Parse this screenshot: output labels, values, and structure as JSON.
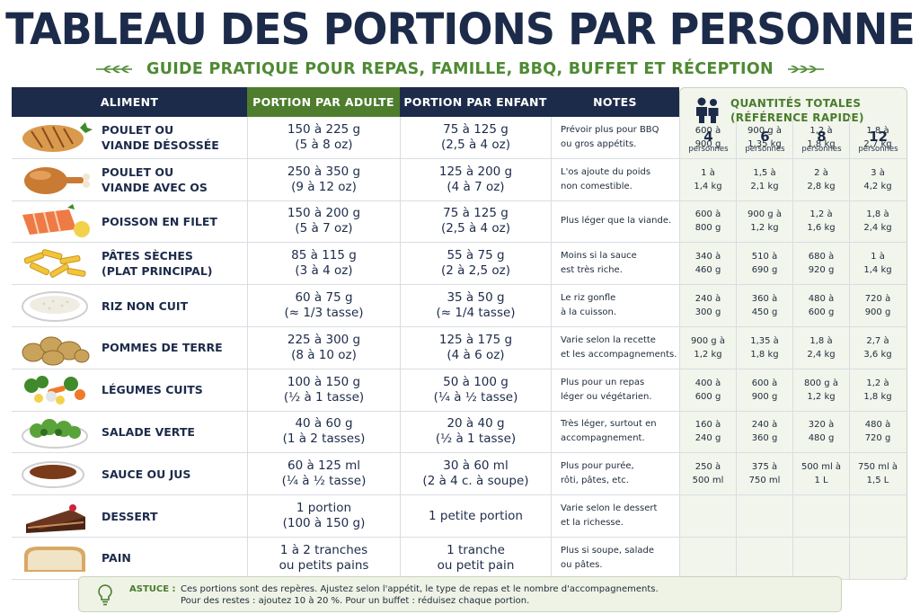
{
  "title": "TABLEAU DES PORTIONS PAR PERSONNE",
  "subtitle": "GUIDE PRATIQUE POUR REPAS, FAMILLE, BBQ, BUFFET ET RÉCEPTION",
  "headers": {
    "aliment": "ALIMENT",
    "adult": "PORTION PAR ADULTE",
    "child": "PORTION PAR ENFANT",
    "notes": "NOTES"
  },
  "quantities_header": {
    "title_line1": "QUANTITÉS TOTALES",
    "title_line2": "(RÉFÉRENCE RAPIDE)",
    "people": [
      {
        "n": "4",
        "label": "personnes"
      },
      {
        "n": "6",
        "label": "personnes"
      },
      {
        "n": "8",
        "label": "personnes"
      },
      {
        "n": "12",
        "label": "personnes"
      }
    ]
  },
  "colors": {
    "navy": "#1d2b4a",
    "green": "#4e7d2e",
    "subtitle_green": "#4e8a33",
    "panel_bg": "#f1f5ec"
  },
  "rows": [
    {
      "icon": "grilled-chicken-icon",
      "name": "POULET OU\nVIANDE DÉSOSSÉE",
      "adult": "150 à 225 g\n(5 à 8 oz)",
      "child": "75 à 125 g\n(2,5 à 4 oz)",
      "notes": "Prévoir plus pour BBQ\nou gros appétits.",
      "q": [
        "600 à\n900 g",
        "900 g à\n1,35 kg",
        "1,2 à\n1,8 kg",
        "1,8 à\n2,7 kg"
      ]
    },
    {
      "icon": "chicken-leg-icon",
      "name": "POULET OU\nVIANDE AVEC OS",
      "adult": "250 à 350 g\n(9 à 12 oz)",
      "child": "125 à 200 g\n(4 à 7 oz)",
      "notes": "L'os ajoute du poids\nnon comestible.",
      "q": [
        "1 à\n1,4 kg",
        "1,5 à\n2,1 kg",
        "2 à\n2,8 kg",
        "3 à\n4,2 kg"
      ]
    },
    {
      "icon": "salmon-fillet-icon",
      "name": "POISSON EN FILET",
      "adult": "150 à 200 g\n(5 à 7 oz)",
      "child": "75 à 125 g\n(2,5 à 4 oz)",
      "notes": "Plus léger que la viande.",
      "q": [
        "600 à\n800 g",
        "900 g à\n1,2 kg",
        "1,2 à\n1,6 kg",
        "1,8 à\n2,4 kg"
      ]
    },
    {
      "icon": "pasta-icon",
      "name": "PÂTES SÈCHES\n(PLAT PRINCIPAL)",
      "adult": "85 à 115 g\n(3 à 4 oz)",
      "child": "55 à 75 g\n(2 à 2,5 oz)",
      "notes": "Moins si la sauce\nest très riche.",
      "q": [
        "340 à\n460 g",
        "510 à\n690 g",
        "680 à\n920 g",
        "1 à\n1,4 kg"
      ]
    },
    {
      "icon": "rice-bowl-icon",
      "name": "RIZ NON CUIT",
      "adult": "60 à 75 g\n(≈ 1/3 tasse)",
      "child": "35 à 50 g\n(≈ 1/4 tasse)",
      "notes": "Le riz gonfle\nà la cuisson.",
      "q": [
        "240 à\n300 g",
        "360 à\n450 g",
        "480 à\n600 g",
        "720 à\n900 g"
      ]
    },
    {
      "icon": "potatoes-icon",
      "name": "POMMES DE TERRE",
      "adult": "225 à 300 g\n(8 à 10 oz)",
      "child": "125 à 175 g\n(4 à 6 oz)",
      "notes": "Varie selon la recette\net les accompagnements.",
      "q": [
        "900 g à\n1,2 kg",
        "1,35 à\n1,8 kg",
        "1,8 à\n2,4 kg",
        "2,7 à\n3,6 kg"
      ]
    },
    {
      "icon": "vegetables-icon",
      "name": "LÉGUMES CUITS",
      "adult": "100 à 150 g\n(½ à 1 tasse)",
      "child": "50 à 100 g\n(¼ à ½ tasse)",
      "notes": "Plus pour un repas\nléger ou végétarien.",
      "q": [
        "400 à\n600 g",
        "600 à\n900 g",
        "800 g à\n1,2 kg",
        "1,2 à\n1,8 kg"
      ]
    },
    {
      "icon": "salad-bowl-icon",
      "name": "SALADE VERTE",
      "adult": "40 à 60 g\n(1 à 2 tasses)",
      "child": "20 à 40 g\n(½ à 1 tasse)",
      "notes": "Très léger, surtout en\naccompagnement.",
      "q": [
        "160 à\n240 g",
        "240 à\n360 g",
        "320 à\n480 g",
        "480 à\n720 g"
      ]
    },
    {
      "icon": "gravy-bowl-icon",
      "name": "SAUCE OU JUS",
      "adult": "60 à 125 ml\n(¼ à ½ tasse)",
      "child": "30 à 60 ml\n(2 à 4 c. à soupe)",
      "notes": "Plus pour purée,\nrôti, pâtes, etc.",
      "q": [
        "250 à\n500 ml",
        "375 à\n750 ml",
        "500 ml à\n1 L",
        "750 ml à\n1,5 L"
      ]
    },
    {
      "icon": "cake-icon",
      "name": "DESSERT",
      "adult": "1 portion\n(100 à 150 g)",
      "child": "1 petite portion",
      "notes": "Varie selon le dessert\net la richesse.",
      "q": [
        "",
        "",
        "",
        ""
      ]
    },
    {
      "icon": "bread-icon",
      "name": "PAIN",
      "adult": "1 à 2 tranches\nou petits pains",
      "child": "1 tranche\nou petit pain",
      "notes": "Plus si soupe, salade\nou pâtes.",
      "q": [
        "",
        "",
        "",
        ""
      ]
    }
  ],
  "tip": {
    "label": "ASTUCE :",
    "line1": "Ces portions sont des repères. Ajustez selon l'appétit, le type de repas et le nombre d'accompagnements.",
    "line2": "Pour des restes : ajoutez 10 à 20 %. Pour un buffet : réduisez chaque portion."
  }
}
